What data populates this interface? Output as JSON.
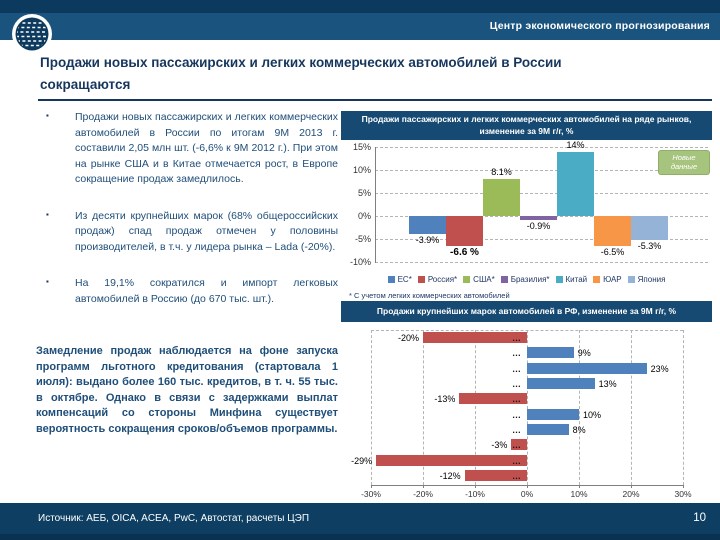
{
  "header": {
    "org": "Центр экономического прогнозирования"
  },
  "title": "Продажи новых пассажирских и легких коммерческих автомобилей в России сокращаются",
  "bullets": [
    "Продажи новых пассажирских и легких коммерческих автомобилей в России по итогам 9М 2013 г. составили 2,05 млн шт. (-6,6% к 9М 2012 г.). При этом на рынке США и в Китае отмечается рост, в Европе сокращение продаж замедлилось.",
    "Из десяти крупнейших марок (68% общероссийских продаж) спад продаж отмечен у половины производителей, в т.ч. у лидера рынка – Lada (-20%).",
    "На 19,1% сократился и импорт легковых автомобилей в Россию (до 670 тыс. шт.)."
  ],
  "highlight": "Замедление продаж наблюдается на фоне запуска программ льготного кредитования (стартовала 1 июля): выдано более 160 тыс. кредитов, в т. ч. 55 тыс. в октябре. Однако в связи с задержками выплат компенсаций со стороны Минфина существует вероятность сокращения сроков/объемов программы.",
  "footer": {
    "source": "Источник: АЕБ, OICA, ACEA, PwC, Автостат, расчеты ЦЭП",
    "page": "10"
  },
  "chart_data": [
    {
      "type": "bar",
      "title": "Продажи пассажирских и легких коммерческих автомобилей на ряде рынков, изменение за 9М г/г, %",
      "categories": [
        "ЕС*",
        "Россия*",
        "США*",
        "Бразилия*",
        "Китай",
        "ЮАР",
        "Япония"
      ],
      "values": [
        -3.9,
        -6.6,
        8.1,
        -0.9,
        14,
        -6.5,
        -5.3
      ],
      "labels": [
        "-3.9%",
        "-6.6 %",
        "8.1%",
        "-0.9%",
        "14%",
        "-6.5%",
        "-5.3%"
      ],
      "emphasized_label": "-6.6 %",
      "colors": [
        "#4f81bd",
        "#c0504d",
        "#9bbb59",
        "#8064a2",
        "#4bacc6",
        "#f79646",
        "#95b3d7"
      ],
      "ylim": [
        -10,
        15
      ],
      "yticks": [
        15,
        10,
        5,
        0,
        -5,
        -10
      ],
      "grid": true,
      "legend_position": "bottom",
      "annotation": "Новые данные",
      "footnote": "* С учетом легких коммерческих автомобилей"
    },
    {
      "type": "bar",
      "orientation": "horizontal",
      "title": "Продажи крупнейших марок автомобилей в РФ, изменение за 9М г/г, %",
      "categories": [
        "…",
        "…",
        "…",
        "…",
        "…",
        "…",
        "…",
        "…",
        "…",
        "…"
      ],
      "values": [
        -20,
        9,
        23,
        13,
        -13,
        10,
        8,
        -3,
        -29,
        -12
      ],
      "labels": [
        "-20%",
        "9%",
        "23%",
        "13%",
        "-13%",
        "10%",
        "8%",
        "-3%",
        "-29%",
        "-12%"
      ],
      "positive_color": "#4f81bd",
      "negative_color": "#c0504d",
      "xlim": [
        -30,
        30
      ],
      "xticks": [
        -30,
        -20,
        -10,
        0,
        10,
        20,
        30
      ],
      "grid": true
    }
  ],
  "colors": {
    "header_dark": "#0c3a5e",
    "header_band": "#1a547e",
    "accent_navy": "#17365d",
    "body_text": "#1f4e79",
    "chart_header": "#164a72",
    "badge_green": "#a7c47e",
    "footer": "#0e3f63"
  }
}
